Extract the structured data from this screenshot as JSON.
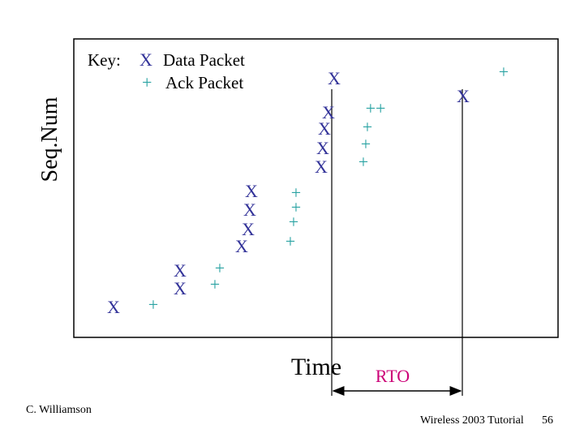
{
  "axis": {
    "y_label": "Seq.Num",
    "x_label": "Time"
  },
  "key": {
    "title": "Key:",
    "data_symbol": "X",
    "data_label": "Data Packet",
    "ack_symbol": "+",
    "ack_label": "Ack Packet"
  },
  "data_packets": [
    "X",
    "X",
    "X",
    "X",
    "X",
    "X",
    "X",
    "X",
    "X",
    "X",
    "X",
    "X",
    "X"
  ],
  "ack_packets": [
    "+",
    "+",
    "+",
    "+",
    "+",
    "+",
    "+",
    "++",
    "+",
    "+",
    "+",
    "+"
  ],
  "rto_label": "RTO",
  "footer": {
    "author": "C. Williamson",
    "event": "Wireless 2003 Tutorial",
    "page": "56"
  }
}
